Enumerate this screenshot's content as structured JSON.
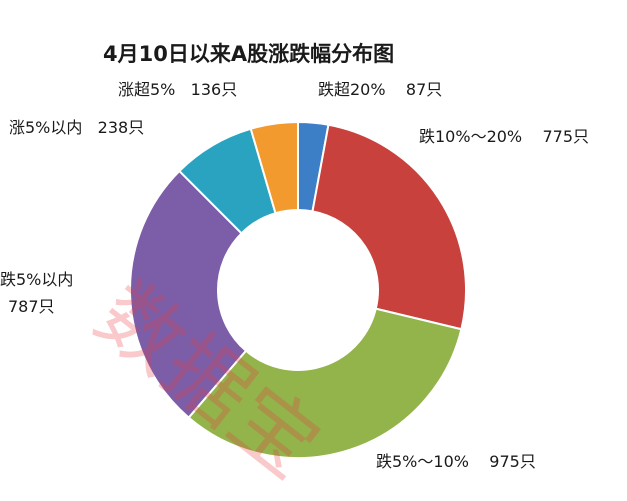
{
  "chart_data": {
    "type": "pie",
    "variant": "donut",
    "title": "4月10日以来A股涨跌幅分布图",
    "slices": [
      {
        "label": "跌超20%",
        "count_text": "87只",
        "value": 87,
        "color": "#3d7fc7"
      },
      {
        "label": "跌10%～20%",
        "count_text": "775只",
        "value": 775,
        "color": "#c8413c"
      },
      {
        "label": "跌5%～10%",
        "count_text": "975只",
        "value": 975,
        "color": "#92b44a"
      },
      {
        "label": "跌5%以内",
        "count_text": "787只",
        "value": 787,
        "color": "#7c5ea8"
      },
      {
        "label": "涨5%以内",
        "count_text": "238只",
        "value": 238,
        "color": "#2aa3c1"
      },
      {
        "label": "涨超5%",
        "count_text": "136只",
        "value": 136,
        "color": "#f29a2e"
      }
    ],
    "legend": "none"
  },
  "watermark": {
    "text": "数据宝",
    "color": "#e83c46"
  }
}
